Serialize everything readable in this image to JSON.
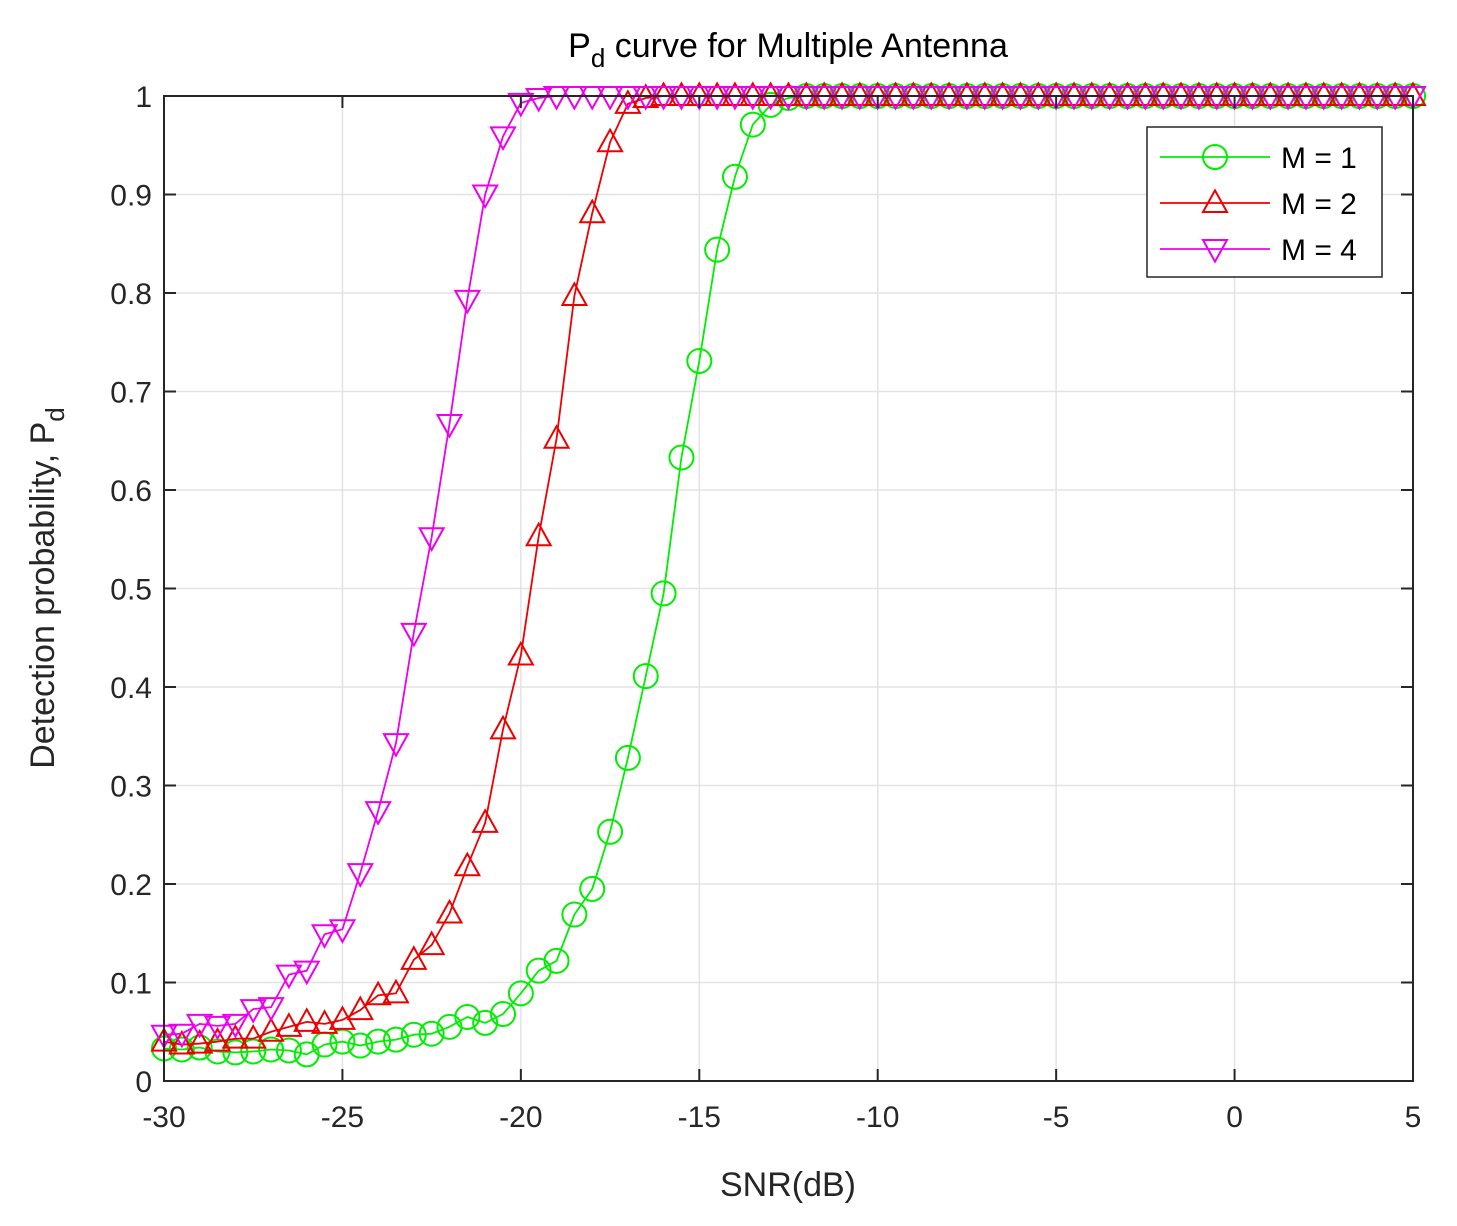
{
  "chart_data": {
    "type": "line",
    "title": "P",
    "title_subscript": "d",
    "title_rest": " curve for Multiple Antenna",
    "xlabel": "SNR(dB)",
    "ylabel": "Detection probability, P",
    "ylabel_subscript": "d",
    "xlim": [
      -30,
      5
    ],
    "ylim": [
      0,
      1
    ],
    "xticks": [
      -30,
      -25,
      -20,
      -15,
      -10,
      -5,
      0,
      5
    ],
    "xtick_labels": [
      "-30",
      "-25",
      "-20",
      "-15",
      "-10",
      "-5",
      "0",
      "5"
    ],
    "yticks": [
      0,
      0.1,
      0.2,
      0.3,
      0.4,
      0.5,
      0.6,
      0.7,
      0.8,
      0.9,
      1
    ],
    "ytick_labels": [
      "0",
      "0.1",
      "0.2",
      "0.3",
      "0.4",
      "0.5",
      "0.6",
      "0.7",
      "0.8",
      "0.9",
      "1"
    ],
    "grid": true,
    "legend_position": "top-right",
    "x": [
      -30,
      -29.5,
      -29,
      -28.5,
      -28,
      -27.5,
      -27,
      -26.5,
      -26,
      -25.5,
      -25,
      -24.5,
      -24,
      -23.5,
      -23,
      -22.5,
      -22,
      -21.5,
      -21,
      -20.5,
      -20,
      -19.5,
      -19,
      -18.5,
      -18,
      -17.5,
      -17,
      -16.5,
      -16,
      -15.5,
      -15,
      -14.5,
      -14,
      -13.5,
      -13,
      -12.5,
      -12,
      -11.5,
      -11,
      -10.5,
      -10,
      -9.5,
      -9,
      -8.5,
      -8,
      -7.5,
      -7,
      -6.5,
      -6,
      -5.5,
      -5,
      -4.5,
      -4,
      -3.5,
      -3,
      -2.5,
      -2,
      -1.5,
      -1,
      -0.5,
      0,
      0.5,
      1,
      1.5,
      2,
      2.5,
      3,
      3.5,
      4,
      4.5,
      5
    ],
    "series": [
      {
        "name": "M = 1",
        "color": "#00ee00",
        "marker": "circle",
        "values": [
          0.033,
          0.032,
          0.034,
          0.03,
          0.029,
          0.03,
          0.032,
          0.031,
          0.027,
          0.037,
          0.04,
          0.036,
          0.04,
          0.042,
          0.047,
          0.048,
          0.055,
          0.065,
          0.059,
          0.068,
          0.089,
          0.112,
          0.122,
          0.169,
          0.195,
          0.253,
          0.328,
          0.411,
          0.495,
          0.633,
          0.731,
          0.844,
          0.918,
          0.971,
          0.991,
          0.998,
          1,
          1,
          1,
          1,
          1,
          1,
          1,
          1,
          1,
          1,
          1,
          1,
          1,
          1,
          1,
          1,
          1,
          1,
          1,
          1,
          1,
          1,
          1,
          1,
          1,
          1,
          1,
          1,
          1,
          1,
          1,
          1,
          1,
          1,
          1
        ]
      },
      {
        "name": "M = 2",
        "color": "#ee0000",
        "marker": "triangle-up",
        "values": [
          0.04,
          0.037,
          0.038,
          0.04,
          0.043,
          0.043,
          0.05,
          0.055,
          0.06,
          0.058,
          0.062,
          0.072,
          0.087,
          0.089,
          0.123,
          0.138,
          0.17,
          0.218,
          0.262,
          0.357,
          0.432,
          0.553,
          0.652,
          0.797,
          0.881,
          0.953,
          0.992,
          0.998,
          1,
          1,
          1,
          1,
          1,
          1,
          1,
          1,
          1,
          1,
          1,
          1,
          1,
          1,
          1,
          1,
          1,
          1,
          1,
          1,
          1,
          1,
          1,
          1,
          1,
          1,
          1,
          1,
          1,
          1,
          1,
          1,
          1,
          1,
          1,
          1,
          1,
          1,
          1,
          1,
          1,
          1,
          1
        ]
      },
      {
        "name": "M = 4",
        "color": "#ee00ee",
        "marker": "triangle-down",
        "values": [
          0.047,
          0.048,
          0.058,
          0.056,
          0.058,
          0.073,
          0.075,
          0.108,
          0.112,
          0.149,
          0.154,
          0.211,
          0.274,
          0.343,
          0.455,
          0.552,
          0.667,
          0.793,
          0.9,
          0.959,
          0.993,
          0.998,
          1,
          1,
          1,
          1,
          1,
          1,
          1,
          1,
          1,
          1,
          1,
          1,
          1,
          1,
          1,
          1,
          1,
          1,
          1,
          1,
          1,
          1,
          1,
          1,
          1,
          1,
          1,
          1,
          1,
          1,
          1,
          1,
          1,
          1,
          1,
          1,
          1,
          1,
          1,
          1,
          1,
          1,
          1,
          1,
          1,
          1,
          1,
          1,
          1
        ]
      }
    ]
  }
}
